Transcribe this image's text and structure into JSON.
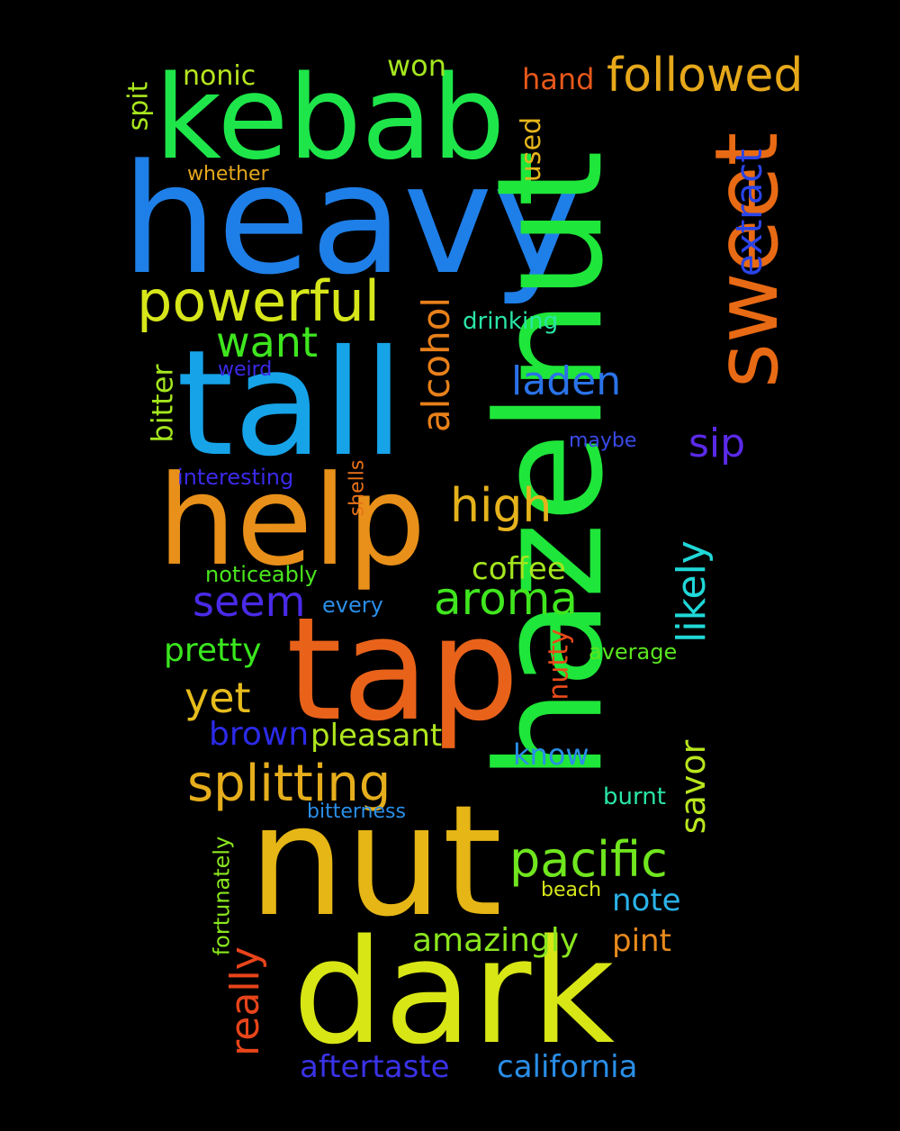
{
  "words": [
    {
      "text": "heavy",
      "color": "#1f7fe8"
    },
    {
      "text": "hazelnut",
      "color": "#1fe63a"
    },
    {
      "text": "kebab",
      "color": "#1ee64a"
    },
    {
      "text": "tall",
      "color": "#16a3e8"
    },
    {
      "text": "help",
      "color": "#e8901a"
    },
    {
      "text": "tap",
      "color": "#e8621a"
    },
    {
      "text": "nut",
      "color": "#e6b616"
    },
    {
      "text": "dark",
      "color": "#d8e616"
    },
    {
      "text": "sweet",
      "color": "#e86a14"
    },
    {
      "text": "powerful",
      "color": "#d6e61a"
    },
    {
      "text": "followed",
      "color": "#e6a81a"
    },
    {
      "text": "splitting",
      "color": "#e6ae1c"
    },
    {
      "text": "pacific",
      "color": "#70e61e"
    },
    {
      "text": "aroma",
      "color": "#40e61e"
    },
    {
      "text": "high",
      "color": "#e6b21c"
    },
    {
      "text": "alcohol",
      "color": "#e8801a"
    },
    {
      "text": "extract",
      "color": "#2a44e8"
    },
    {
      "text": "laden",
      "color": "#2a72e8"
    },
    {
      "text": "want",
      "color": "#3ee61e"
    },
    {
      "text": "seem",
      "color": "#4a2ae8"
    },
    {
      "text": "likely",
      "color": "#20d8d8"
    },
    {
      "text": "yet",
      "color": "#e6bc1c"
    },
    {
      "text": "sip",
      "color": "#5a2ae8"
    },
    {
      "text": "really",
      "color": "#e8441a"
    },
    {
      "text": "aftertaste",
      "color": "#3a32e8"
    },
    {
      "text": "california",
      "color": "#2a8ee8"
    },
    {
      "text": "amazingly",
      "color": "#8ae61e"
    },
    {
      "text": "pretty",
      "color": "#3ae61e"
    },
    {
      "text": "brown",
      "color": "#2c2ae8"
    },
    {
      "text": "pleasant",
      "color": "#b0e61e"
    },
    {
      "text": "coffee",
      "color": "#a4e61e"
    },
    {
      "text": "savor",
      "color": "#b8e61e"
    },
    {
      "text": "kebab",
      "color": "#000000"
    },
    {
      "text": "kebab",
      "color": "#000000"
    },
    {
      "text": "know",
      "color": "#2a8ee8"
    },
    {
      "text": "note",
      "color": "#2ab2e8"
    },
    {
      "text": "pint",
      "color": "#e88a1c"
    },
    {
      "text": "hand",
      "color": "#e8581a"
    },
    {
      "text": "won",
      "color": "#a4e61e"
    },
    {
      "text": "nonic",
      "color": "#b8e61e"
    },
    {
      "text": "spit",
      "color": "#a8e61e"
    },
    {
      "text": "used",
      "color": "#e6b61c"
    },
    {
      "text": "bitter",
      "color": "#a4e61e"
    },
    {
      "text": "nutty",
      "color": "#e84a1a"
    },
    {
      "text": "drinking",
      "color": "#2ae6a4"
    },
    {
      "text": "burnt",
      "color": "#2ae6a4"
    },
    {
      "text": "whether",
      "color": "#e6a81c"
    },
    {
      "text": "weird",
      "color": "#3a2ae8"
    },
    {
      "text": "maybe",
      "color": "#3a4ae8"
    },
    {
      "text": "interesting",
      "color": "#3a2ae8"
    },
    {
      "text": "shells",
      "color": "#e8721a"
    },
    {
      "text": "noticeably",
      "color": "#4ae61e"
    },
    {
      "text": "every",
      "color": "#2a8ee8"
    },
    {
      "text": "average",
      "color": "#5ae61e"
    },
    {
      "text": "bitterness",
      "color": "#2a8ee8"
    },
    {
      "text": "fortunately",
      "color": "#8ae61e"
    },
    {
      "text": "beach",
      "color": "#d6e61a"
    }
  ]
}
